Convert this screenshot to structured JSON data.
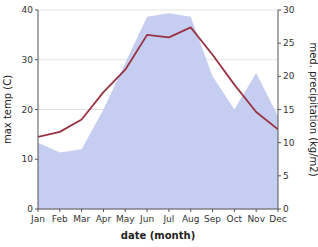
{
  "chart_data": {
    "type": "line",
    "categories": [
      "Jan",
      "Feb",
      "Mar",
      "Apr",
      "May",
      "Jun",
      "Jul",
      "Aug",
      "Sep",
      "Oct",
      "Nov",
      "Dec"
    ],
    "x_label": "date (month)",
    "y_label": "max temp (C)",
    "y2_label": "med. precipitation (kg/m2)",
    "series": [
      {
        "type": "area",
        "axis": "y2",
        "color": "#c5cdf0",
        "values": [
          10.0,
          8.5,
          9.0,
          15.0,
          22.0,
          29.0,
          29.5,
          29.0,
          20.0,
          15.0,
          20.5,
          14.0
        ]
      },
      {
        "type": "line",
        "color": "#993344",
        "values": [
          14.5,
          15.5,
          18.0,
          23.5,
          28.0,
          35.0,
          34.5,
          36.5,
          31.0,
          25.0,
          19.5,
          16.0
        ]
      }
    ],
    "ylim": [
      0,
      40
    ],
    "yticks": [
      0,
      10,
      20,
      30,
      40
    ],
    "y2lim": [
      0,
      30
    ],
    "y2ticks": [
      0,
      5,
      10,
      15,
      20,
      25,
      30
    ],
    "grid": true
  }
}
